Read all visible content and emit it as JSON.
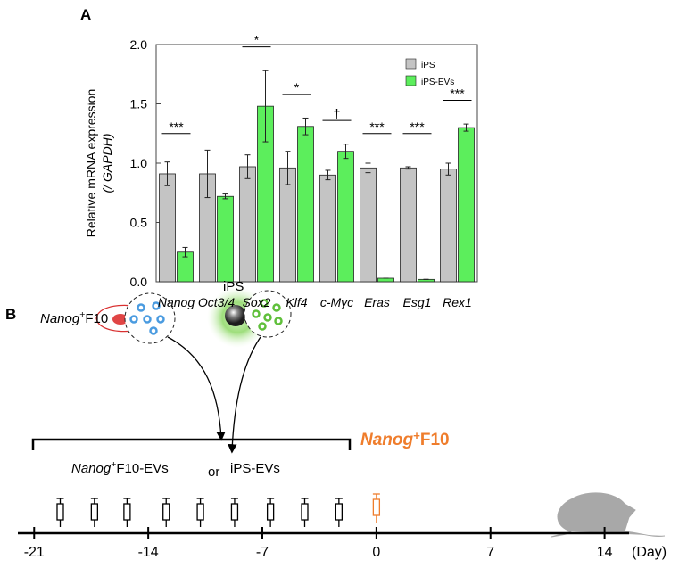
{
  "panel_labels": [
    "A",
    "B"
  ],
  "chart_data": {
    "type": "bar",
    "y_label": "Relative mRNA expression",
    "y_label_2": "(/ GAPDH)",
    "categories": [
      "Nanog",
      "Oct3/4",
      "Sox2",
      "Klf4",
      "c-Myc",
      "Eras",
      "Esg1",
      "Rex1"
    ],
    "series": [
      {
        "name": "iPS",
        "color": "#c4c4c4",
        "values": [
          0.91,
          0.91,
          0.97,
          0.96,
          0.9,
          0.96,
          0.96,
          0.95
        ],
        "errors": [
          0.1,
          0.2,
          0.1,
          0.14,
          0.04,
          0.04,
          0.01,
          0.05
        ]
      },
      {
        "name": "iPS-EVs",
        "color": "#5cee5c",
        "values": [
          0.25,
          0.72,
          1.48,
          1.31,
          1.1,
          0.03,
          0.02,
          1.3
        ],
        "errors": [
          0.04,
          0.02,
          0.3,
          0.07,
          0.06,
          0.0,
          0.0,
          0.03
        ]
      }
    ],
    "significance": [
      "***",
      null,
      "*",
      "*",
      "†",
      "***",
      "***",
      "***"
    ],
    "ylim": [
      0,
      2
    ],
    "yticks": [
      {
        "value": 0,
        "label": "0.0"
      },
      0.5,
      {
        "value": 1,
        "label": "1.0"
      },
      1.5,
      {
        "value": 2,
        "label": "2.0"
      }
    ],
    "legend": "upper right"
  },
  "diagram": {
    "donor_label": {
      "gene": "Nanog",
      "sup": "+",
      "rest": "F10"
    },
    "ips_label": "iPS",
    "ev_label_1": {
      "gene": "Nanog",
      "sup": "+",
      "rest": "F10-EVs"
    },
    "or": "or",
    "ev_label_2": "iPS-EVs",
    "tumor_label": {
      "gene": "Nanog",
      "sup": "+",
      "rest": "F10"
    }
  },
  "timeline": {
    "xlim": [
      -22,
      15.5
    ],
    "xticks": [
      -21,
      -14,
      -7,
      0,
      7,
      14
    ],
    "unit": "(Day)",
    "injection_days": [
      -19.4,
      -17.3,
      -15.3,
      -12.9,
      -10.8,
      -8.7,
      -6.5,
      -4.4,
      -2.3
    ],
    "tumor_day": 0
  }
}
